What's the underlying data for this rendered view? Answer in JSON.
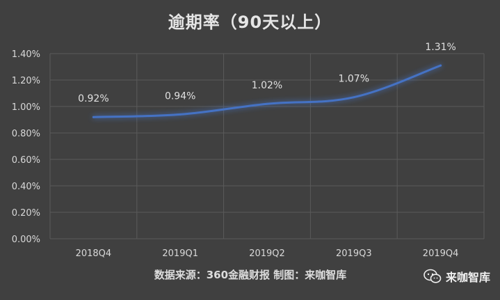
{
  "title": "逾期率（90天以上）",
  "source": "数据来源：360金融财报 制图：来咖智库",
  "badge": {
    "label": "来咖智库",
    "icon": "wechat-icon"
  },
  "colors": {
    "background": "#404040",
    "line": "#4472c4",
    "grid": "#5a5a5a",
    "text": "#d9d9d9"
  },
  "chart_data": {
    "type": "line",
    "title": "逾期率（90天以上）",
    "categories": [
      "2018Q4",
      "2019Q1",
      "2019Q2",
      "2019Q3",
      "2019Q4"
    ],
    "values": [
      0.92,
      0.94,
      1.02,
      1.07,
      1.31
    ],
    "data_labels": [
      "0.92%",
      "0.94%",
      "1.02%",
      "1.07%",
      "1.31%"
    ],
    "y_ticks": [
      "0.00%",
      "0.20%",
      "0.40%",
      "0.60%",
      "0.80%",
      "1.00%",
      "1.20%",
      "1.40%"
    ],
    "y_tick_values": [
      0,
      0.2,
      0.4,
      0.6,
      0.8,
      1.0,
      1.2,
      1.4
    ],
    "ylim": [
      0,
      1.4
    ],
    "grid": true,
    "xlabel": "",
    "ylabel": ""
  }
}
